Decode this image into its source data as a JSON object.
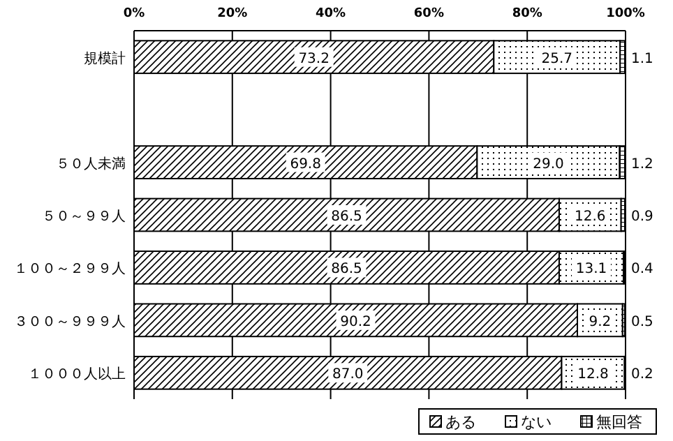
{
  "chart_data": {
    "type": "bar",
    "orientation": "horizontal",
    "stacked": true,
    "grid": "x",
    "legend": "bottom right",
    "categories": [
      "規模計",
      null,
      "５０人未満",
      "５０～９９人",
      "１００～２９９人",
      "３００～９９９人",
      "１０００人以上"
    ],
    "series": [
      {
        "name": "ある",
        "color": "#000000",
        "values": [
          73.2,
          null,
          69.8,
          86.5,
          86.5,
          90.2,
          87.0
        ],
        "value_labels": [
          "73.2",
          null,
          "69.8",
          "86.5",
          "86.5",
          "90.2",
          "87.0"
        ]
      },
      {
        "name": "ない",
        "color": "#000000",
        "values": [
          25.7,
          null,
          29.0,
          12.6,
          13.1,
          9.2,
          12.8
        ],
        "value_labels": [
          "25.7",
          null,
          "29.0",
          "12.6",
          "13.1",
          "9.2",
          "12.8"
        ]
      },
      {
        "name": "無回答",
        "color": "#000000",
        "values": [
          1.1,
          null,
          1.2,
          0.9,
          0.4,
          0.5,
          0.2
        ],
        "value_labels": [
          "1.1",
          null,
          "1.2",
          "0.9",
          "0.4",
          "0.5",
          "0.2"
        ]
      }
    ],
    "xlim": [
      0,
      100
    ],
    "xticks": [
      {
        "value": 0,
        "label": "0%"
      },
      {
        "value": 20,
        "label": "20%"
      },
      {
        "value": 40,
        "label": "40%"
      },
      {
        "value": 60,
        "label": "60%"
      },
      {
        "value": 80,
        "label": "80%"
      },
      {
        "value": 100,
        "label": "100%"
      }
    ]
  }
}
